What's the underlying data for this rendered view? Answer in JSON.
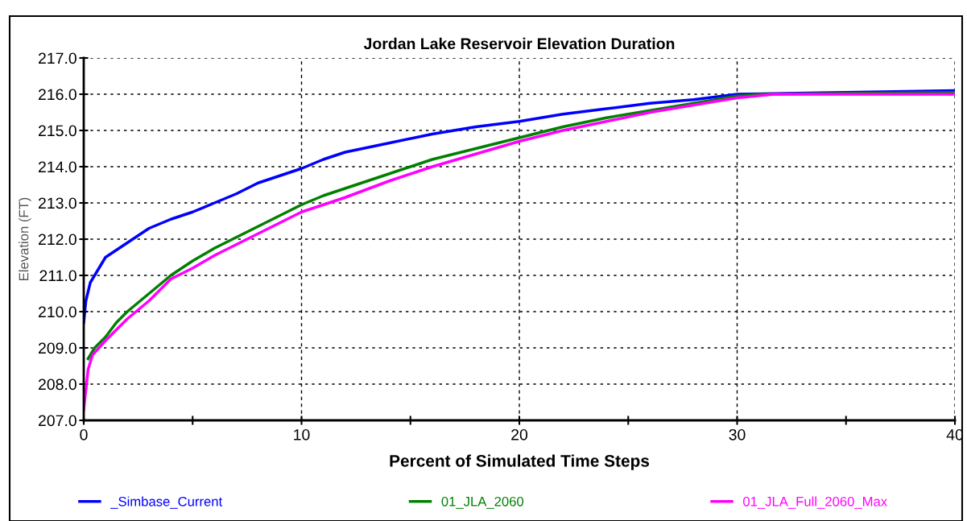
{
  "chart_data": {
    "type": "line",
    "title": "Jordan Lake Reservoir Elevation Duration",
    "xlabel": "Percent of Simulated Time Steps",
    "ylabel": "Elevation (FT)",
    "xlim": [
      0,
      40
    ],
    "xticks": [
      0,
      {
        "value": 5,
        "label": null
      },
      10,
      {
        "value": 15,
        "label": null
      },
      20,
      {
        "value": 25,
        "label": null
      },
      30,
      {
        "value": 35,
        "label": null
      },
      40
    ],
    "ylim": [
      207,
      217
    ],
    "yticks": [
      {
        "value": 207,
        "label": "207.0"
      },
      {
        "value": 208,
        "label": "208.0"
      },
      {
        "value": 209,
        "label": "209.0"
      },
      {
        "value": 210,
        "label": "210.0"
      },
      {
        "value": 211,
        "label": "211.0"
      },
      {
        "value": 212,
        "label": "212.0"
      },
      {
        "value": 213,
        "label": "213.0"
      },
      {
        "value": 214,
        "label": "214.0"
      },
      {
        "value": 215,
        "label": "215.0"
      },
      {
        "value": 216,
        "label": "216.0"
      },
      {
        "value": 217,
        "label": "217.0"
      }
    ],
    "grid": true,
    "legend": "bottom",
    "line_style": "solid",
    "marker": "none",
    "series": [
      {
        "name": "_Simbase_Current",
        "color": "#0000ff",
        "x": [
          0,
          0.1,
          0.3,
          0.6,
          1,
          2,
          3,
          4,
          5,
          6,
          7,
          8,
          9,
          10,
          11,
          12,
          14,
          16,
          18,
          20,
          22,
          24,
          26,
          28,
          30,
          35,
          40
        ],
        "values": [
          209.7,
          210.3,
          210.8,
          211.1,
          211.5,
          211.9,
          212.3,
          212.55,
          212.75,
          213,
          213.25,
          213.55,
          213.75,
          213.95,
          214.2,
          214.4,
          214.65,
          214.9,
          215.1,
          215.25,
          215.45,
          215.6,
          215.75,
          215.85,
          216.0,
          216.05,
          216.1
        ]
      },
      {
        "name": "01_JLA_2060",
        "color": "#008000",
        "x": [
          0.2,
          0.5,
          1,
          1.5,
          2,
          3,
          4,
          5,
          6,
          7,
          8,
          9,
          10,
          11,
          12,
          14,
          16,
          18,
          20,
          22,
          24,
          26,
          28,
          30,
          31,
          40
        ],
        "values": [
          208.7,
          209.0,
          209.3,
          209.7,
          210.0,
          210.5,
          211.0,
          211.4,
          211.75,
          212.05,
          212.35,
          212.65,
          212.95,
          213.2,
          213.4,
          213.8,
          214.2,
          214.5,
          214.8,
          215.1,
          215.35,
          215.55,
          215.75,
          215.95,
          216.0,
          216.05
        ]
      },
      {
        "name": "01_JLA_Full_2060_Max",
        "color": "#ff00ff",
        "x": [
          0,
          0.2,
          0.4,
          1,
          1.5,
          2,
          3,
          4,
          5,
          6,
          7,
          8,
          9,
          10,
          11,
          12,
          14,
          16,
          18,
          20,
          22,
          24,
          26,
          28,
          30,
          31.7,
          40
        ],
        "values": [
          207.3,
          208.4,
          208.8,
          209.2,
          209.5,
          209.8,
          210.3,
          210.9,
          211.2,
          211.55,
          211.85,
          212.15,
          212.45,
          212.75,
          212.95,
          213.15,
          213.6,
          214.0,
          214.35,
          214.7,
          215.0,
          215.25,
          215.5,
          215.7,
          215.9,
          216.0,
          216.0
        ]
      }
    ]
  }
}
